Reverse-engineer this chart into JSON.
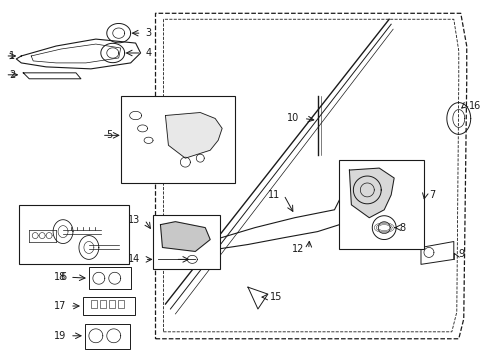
{
  "bg_color": "#ffffff",
  "fig_width": 4.89,
  "fig_height": 3.6,
  "dpi": 100,
  "lc": "#1a1a1a",
  "fs": 7.0
}
